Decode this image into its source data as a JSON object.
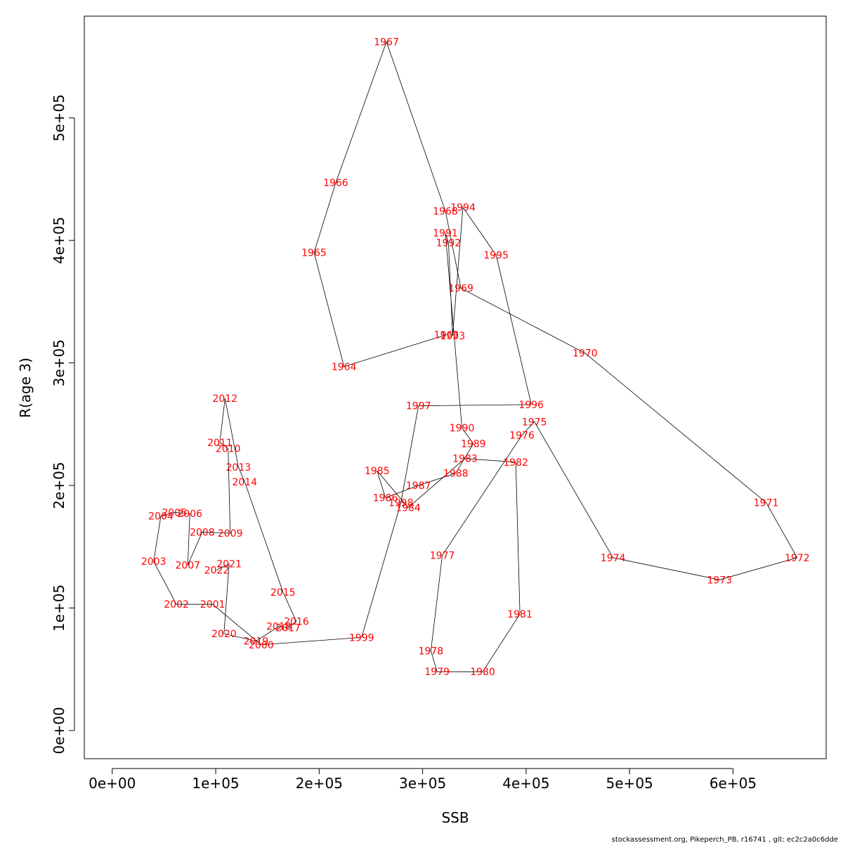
{
  "chart_data": {
    "type": "line",
    "title": "",
    "xlabel": "SSB",
    "ylabel": "R(age 3)",
    "xlim": [
      -27000,
      690000
    ],
    "ylim": [
      -23000,
      583000
    ],
    "x_ticks": [
      0,
      100000,
      200000,
      300000,
      400000,
      500000,
      600000
    ],
    "x_tick_labels": [
      "0e+00",
      "1e+05",
      "2e+05",
      "3e+05",
      "4e+05",
      "5e+05",
      "6e+05"
    ],
    "y_ticks": [
      0,
      100000,
      200000,
      300000,
      400000,
      500000
    ],
    "y_tick_labels": [
      "0e+00",
      "1e+05",
      "2e+05",
      "3e+05",
      "4e+05",
      "5e+05"
    ],
    "grid": false,
    "line_color": "#000000",
    "label_color": "#ff0000",
    "points": [
      {
        "year": "1963",
        "x": 323000,
        "y": 323000
      },
      {
        "year": "1964",
        "x": 224000,
        "y": 297000
      },
      {
        "year": "1965",
        "x": 195000,
        "y": 390000
      },
      {
        "year": "1966",
        "x": 216000,
        "y": 447000
      },
      {
        "year": "1967",
        "x": 265000,
        "y": 562000
      },
      {
        "year": "1968",
        "x": 322000,
        "y": 424000
      },
      {
        "year": "1969",
        "x": 337000,
        "y": 361000
      },
      {
        "year": "1970",
        "x": 457000,
        "y": 308000
      },
      {
        "year": "1971",
        "x": 632000,
        "y": 186000
      },
      {
        "year": "1972",
        "x": 662000,
        "y": 141000
      },
      {
        "year": "1973",
        "x": 587000,
        "y": 123000
      },
      {
        "year": "1974",
        "x": 484000,
        "y": 141000
      },
      {
        "year": "1975",
        "x": 408000,
        "y": 252000
      },
      {
        "year": "1976",
        "x": 396000,
        "y": 241000
      },
      {
        "year": "1977",
        "x": 319000,
        "y": 143000
      },
      {
        "year": "1978",
        "x": 308000,
        "y": 65000
      },
      {
        "year": "1979",
        "x": 314000,
        "y": 48000
      },
      {
        "year": "1980",
        "x": 358000,
        "y": 48000
      },
      {
        "year": "1981",
        "x": 394000,
        "y": 95000
      },
      {
        "year": "1982",
        "x": 390000,
        "y": 219000
      },
      {
        "year": "1983",
        "x": 341000,
        "y": 222000
      },
      {
        "year": "1984",
        "x": 286000,
        "y": 182000
      },
      {
        "year": "1985",
        "x": 256000,
        "y": 212000
      },
      {
        "year": "1986",
        "x": 264000,
        "y": 190000
      },
      {
        "year": "1987",
        "x": 296000,
        "y": 200000
      },
      {
        "year": "1988",
        "x": 332000,
        "y": 210000
      },
      {
        "year": "1989",
        "x": 349000,
        "y": 234000
      },
      {
        "year": "1990",
        "x": 338000,
        "y": 247000
      },
      {
        "year": "1991",
        "x": 322000,
        "y": 406000
      },
      {
        "year": "1992",
        "x": 325000,
        "y": 398000
      },
      {
        "year": "1993",
        "x": 329000,
        "y": 322000
      },
      {
        "year": "1994",
        "x": 339000,
        "y": 427000
      },
      {
        "year": "1995",
        "x": 371000,
        "y": 388000
      },
      {
        "year": "1996",
        "x": 405000,
        "y": 266000
      },
      {
        "year": "1997",
        "x": 296000,
        "y": 265000
      },
      {
        "year": "1998",
        "x": 279000,
        "y": 186000
      },
      {
        "year": "1999",
        "x": 241000,
        "y": 76000
      },
      {
        "year": "2000",
        "x": 144000,
        "y": 70000
      },
      {
        "year": "2001",
        "x": 97000,
        "y": 103000
      },
      {
        "year": "2002",
        "x": 62000,
        "y": 103000
      },
      {
        "year": "2003",
        "x": 40000,
        "y": 138000
      },
      {
        "year": "2004",
        "x": 47000,
        "y": 175000
      },
      {
        "year": "2005",
        "x": 60000,
        "y": 178000
      },
      {
        "year": "2006",
        "x": 75000,
        "y": 177000
      },
      {
        "year": "2007",
        "x": 73000,
        "y": 135000
      },
      {
        "year": "2008",
        "x": 87000,
        "y": 162000
      },
      {
        "year": "2009",
        "x": 114000,
        "y": 161000
      },
      {
        "year": "2010",
        "x": 112000,
        "y": 230000
      },
      {
        "year": "2011",
        "x": 104000,
        "y": 235000
      },
      {
        "year": "2012",
        "x": 109000,
        "y": 271000
      },
      {
        "year": "2013",
        "x": 122000,
        "y": 215000
      },
      {
        "year": "2014",
        "x": 128000,
        "y": 203000
      },
      {
        "year": "2015",
        "x": 165000,
        "y": 113000
      },
      {
        "year": "2016",
        "x": 178000,
        "y": 89000
      },
      {
        "year": "2017",
        "x": 170000,
        "y": 84000
      },
      {
        "year": "2018",
        "x": 161000,
        "y": 85000
      },
      {
        "year": "2019",
        "x": 139000,
        "y": 73000
      },
      {
        "year": "2020",
        "x": 108000,
        "y": 79000
      },
      {
        "year": "2021",
        "x": 113000,
        "y": 136000
      },
      {
        "year": "2022",
        "x": 101000,
        "y": 131000
      }
    ]
  },
  "footer": "stockassessment.org, Pikeperch_PB, r16741 , git: ec2c2a0c6dde"
}
